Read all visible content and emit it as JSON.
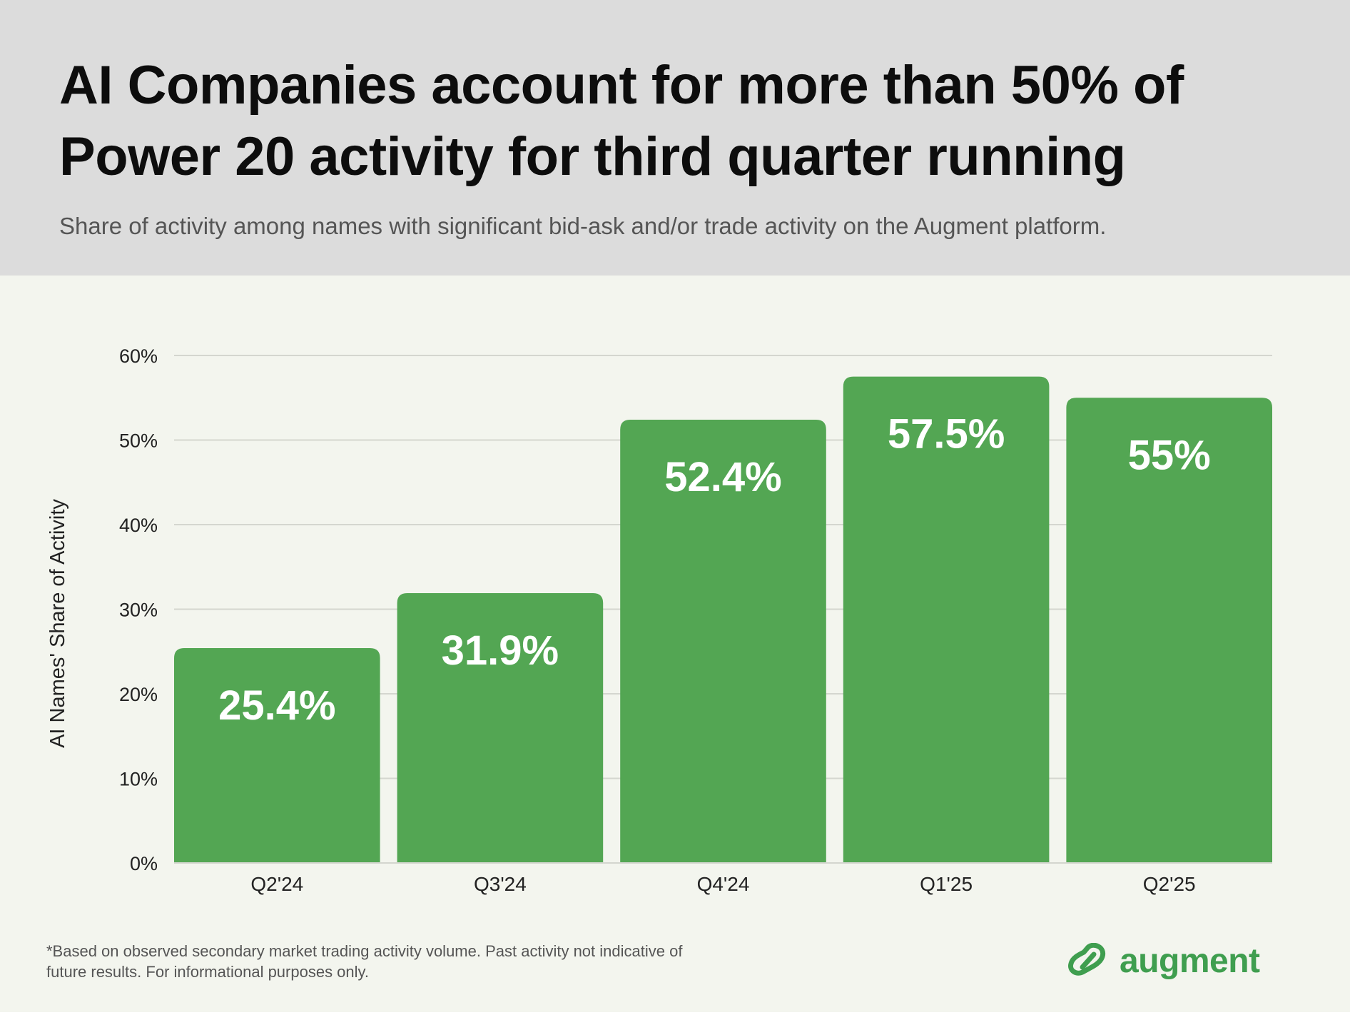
{
  "header": {
    "title_line1": "AI Companies account for more than 50% of",
    "title_line2": "Power 20 activity for third quarter running",
    "subtitle": "Share of activity among names with significant bid-ask and/or trade activity on the Augment platform."
  },
  "chart_data": {
    "type": "bar",
    "categories": [
      "Q2'24",
      "Q3'24",
      "Q4'24",
      "Q1'25",
      "Q2'25"
    ],
    "values": [
      25.4,
      31.9,
      52.4,
      57.5,
      55
    ],
    "data_labels": [
      "25.4%",
      "31.9%",
      "52.4%",
      "57.5%",
      "55%"
    ],
    "xlabel": "",
    "ylabel": "AI Names' Share of Activity",
    "ylim": [
      0,
      60
    ],
    "yticks": [
      0,
      10,
      20,
      30,
      40,
      50,
      60
    ],
    "ytick_labels": [
      "0%",
      "10%",
      "20%",
      "30%",
      "40%",
      "50%",
      "60%"
    ],
    "grid": true,
    "legend": "none",
    "bar_color": "#53a653",
    "label_color": "#ffffff",
    "grid_color": "#d4d6cf"
  },
  "footnote": {
    "line1": "*Based on observed secondary market trading activity volume. Past activity not indicative of",
    "line2": "future results. For informational purposes only."
  },
  "brand": {
    "name": "augment",
    "icon": "augment-logo-icon",
    "color": "#3f9e4f"
  }
}
